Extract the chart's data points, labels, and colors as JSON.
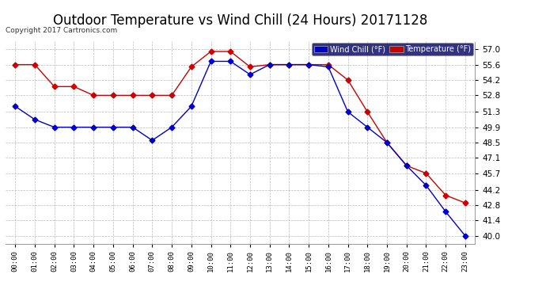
{
  "title": "Outdoor Temperature vs Wind Chill (24 Hours) 20171128",
  "copyright": "Copyright 2017 Cartronics.com",
  "hours": [
    "00:00",
    "01:00",
    "02:00",
    "03:00",
    "04:00",
    "05:00",
    "06:00",
    "07:00",
    "08:00",
    "09:00",
    "10:00",
    "11:00",
    "12:00",
    "13:00",
    "14:00",
    "15:00",
    "16:00",
    "17:00",
    "18:00",
    "19:00",
    "20:00",
    "21:00",
    "22:00",
    "23:00"
  ],
  "temperature": [
    55.6,
    55.6,
    53.6,
    53.6,
    52.8,
    52.8,
    52.8,
    52.8,
    52.8,
    55.4,
    56.8,
    56.8,
    55.4,
    55.6,
    55.6,
    55.6,
    55.6,
    54.2,
    51.3,
    48.5,
    46.4,
    45.7,
    43.7,
    43.0
  ],
  "wind_chill": [
    51.8,
    50.6,
    49.9,
    49.9,
    49.9,
    49.9,
    49.9,
    48.7,
    49.9,
    51.8,
    55.9,
    55.9,
    54.7,
    55.6,
    55.6,
    55.6,
    55.4,
    51.3,
    49.9,
    48.5,
    46.4,
    44.6,
    42.2,
    40.0
  ],
  "temp_color": "#cc0000",
  "wind_chill_color": "#0000cc",
  "ylim_min": 39.3,
  "ylim_max": 57.7,
  "yticks": [
    40.0,
    41.4,
    42.8,
    44.2,
    45.7,
    47.1,
    48.5,
    49.9,
    51.3,
    52.8,
    54.2,
    55.6,
    57.0
  ],
  "bg_color": "#ffffff",
  "plot_bg_color": "#ffffff",
  "grid_color": "#bbbbbb",
  "title_fontsize": 12,
  "legend_wind_chill_bg": "#0000cc",
  "legend_temp_bg": "#cc0000",
  "marker": "D",
  "markersize": 3.5
}
